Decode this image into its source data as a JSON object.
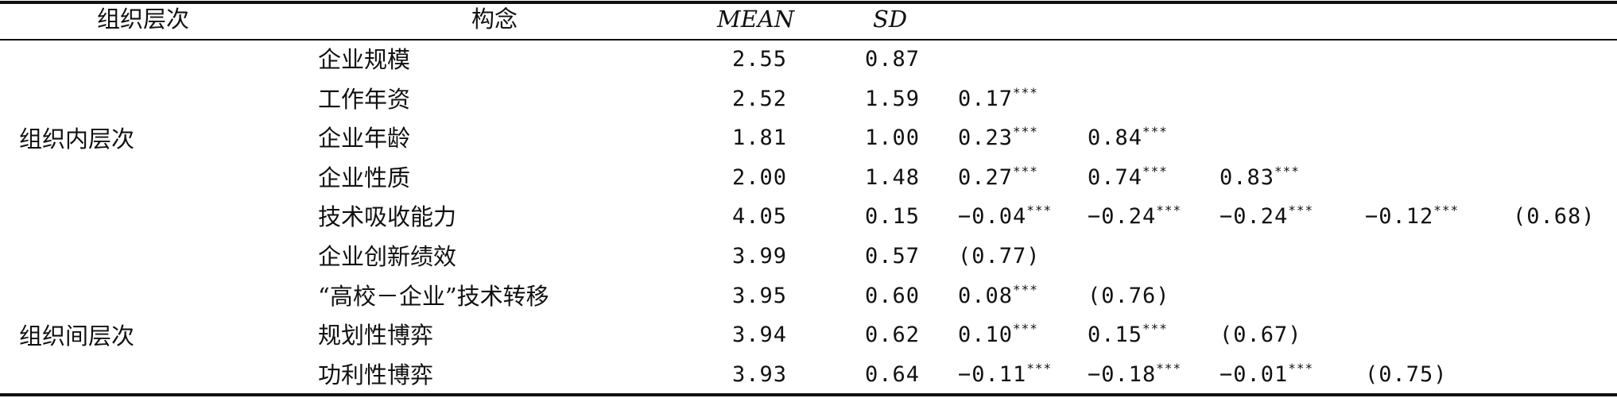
{
  "table": {
    "headers": {
      "level": "组织层次",
      "construct": "构念",
      "mean": "MEAN",
      "sd": "SD"
    },
    "groups": {
      "within": "组织内层次",
      "between": "组织间层次"
    },
    "rows": [
      {
        "construct": "企业规模",
        "mean": "2.55",
        "sd": "0.87",
        "c1": "",
        "c1sup": "",
        "c2": "",
        "c2sup": "",
        "c3": "",
        "c3sup": "",
        "c4": "",
        "c4sup": "",
        "c5": ""
      },
      {
        "construct": "工作年资",
        "mean": "2.52",
        "sd": "1.59",
        "c1": "0.17",
        "c1sup": "***",
        "c2": "",
        "c2sup": "",
        "c3": "",
        "c3sup": "",
        "c4": "",
        "c4sup": "",
        "c5": ""
      },
      {
        "construct": "企业年龄",
        "mean": "1.81",
        "sd": "1.00",
        "c1": "0.23",
        "c1sup": "***",
        "c2": "0.84",
        "c2sup": "***",
        "c3": "",
        "c3sup": "",
        "c4": "",
        "c4sup": "",
        "c5": ""
      },
      {
        "construct": "企业性质",
        "mean": "2.00",
        "sd": "1.48",
        "c1": "0.27",
        "c1sup": "***",
        "c2": "0.74",
        "c2sup": "***",
        "c3": "0.83",
        "c3sup": "***",
        "c4": "",
        "c4sup": "",
        "c5": ""
      },
      {
        "construct": "技术吸收能力",
        "mean": "4.05",
        "sd": "0.15",
        "c1": "−0.04",
        "c1sup": "***",
        "c2": "−0.24",
        "c2sup": "***",
        "c3": "−0.24",
        "c3sup": "***",
        "c4": "−0.12",
        "c4sup": "***",
        "c5": "(0.68)"
      },
      {
        "construct": "企业创新绩效",
        "mean": "3.99",
        "sd": "0.57",
        "c1": "(0.77)",
        "c1sup": "",
        "c2": "",
        "c2sup": "",
        "c3": "",
        "c3sup": "",
        "c4": "",
        "c4sup": "",
        "c5": ""
      },
      {
        "construct": "“高校－企业”技术转移",
        "mean": "3.95",
        "sd": "0.60",
        "c1": "0.08",
        "c1sup": "***",
        "c2": "(0.76)",
        "c2sup": "",
        "c3": "",
        "c3sup": "",
        "c4": "",
        "c4sup": "",
        "c5": ""
      },
      {
        "construct": "规划性博弈",
        "mean": "3.94",
        "sd": "0.62",
        "c1": "0.10",
        "c1sup": "***",
        "c2": "0.15",
        "c2sup": "***",
        "c3": "(0.67)",
        "c3sup": "",
        "c4": "",
        "c4sup": "",
        "c5": ""
      },
      {
        "construct": "功利性博弈",
        "mean": "3.93",
        "sd": "0.64",
        "c1": "−0.11",
        "c1sup": "***",
        "c2": "−0.18",
        "c2sup": "***",
        "c3": "−0.01",
        "c3sup": "***",
        "c4": "(0.75)",
        "c4sup": "",
        "c5": ""
      }
    ]
  }
}
